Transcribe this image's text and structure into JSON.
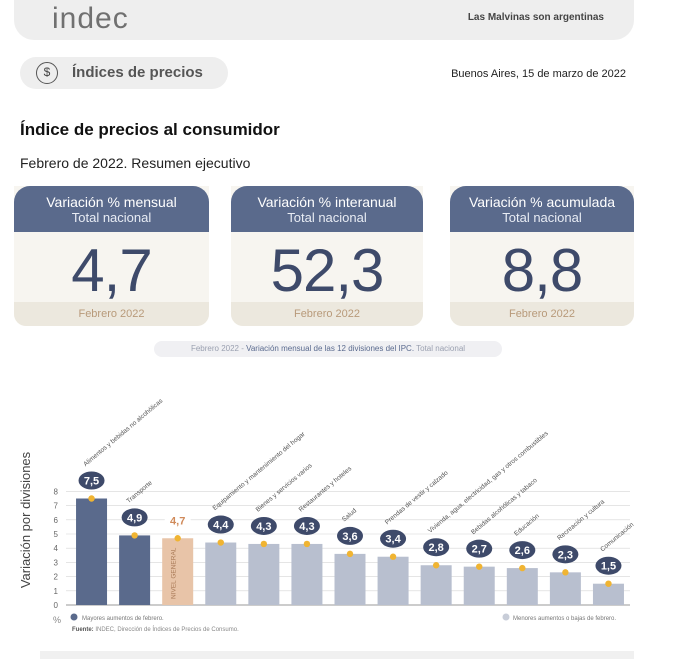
{
  "header": {
    "logo": "indec",
    "slogan": "Las Malvinas son argentinas"
  },
  "section": {
    "icon": "price-index-icon",
    "label": "Índices de precios",
    "date_line": "Buenos Aires, 15 de marzo de 2022"
  },
  "report": {
    "title": "Índice de precios al consumidor",
    "subtitle": "Febrero de 2022. Resumen ejecutivo"
  },
  "cards": [
    {
      "title": "Variación % mensual",
      "subtitle": "Total nacional",
      "value": "4,7",
      "footer": "Febrero 2022"
    },
    {
      "title": "Variación % interanual",
      "subtitle": "Total nacional",
      "value": "52,3",
      "footer": "Febrero 2022"
    },
    {
      "title": "Variación % acumulada",
      "subtitle": "Total nacional",
      "value": "8,8",
      "footer": "Febrero 2022"
    }
  ],
  "chart_banner": {
    "period": "Febrero 2022 - ",
    "description": "Variación mensual de las 12 divisiones del IPC.",
    "scope": " Total nacional"
  },
  "colors": {
    "navy": "#5a6a8c",
    "highlight": "#e8c4a8",
    "gray": "#b8bfcf",
    "marker": "#f0b432"
  },
  "chart_data": {
    "type": "bar",
    "ylabel": "Variación por divisiones",
    "yunit": "%",
    "ylim": [
      0,
      8
    ],
    "yticks": [
      "0",
      "1",
      "2",
      "3",
      "4",
      "5",
      "6",
      "7",
      "8"
    ],
    "grid": true,
    "categories": [
      "Alimentos y bebidas no alcohólicas",
      "Transporte",
      "NIVEL GENERAL",
      "Equipamiento y mantenimiento del hogar",
      "Bienes y servicios varios",
      "Restaurantes y hoteles",
      "Salud",
      "Prendas de vestir y calzado",
      "Vivienda, agua, electricidad, gas y otros combustibles",
      "Bebidas alcohólicas y tabaco",
      "Educación",
      "Recreación y cultura",
      "Comunicación"
    ],
    "values": [
      7.5,
      4.9,
      4.7,
      4.4,
      4.3,
      4.3,
      3.6,
      3.4,
      2.8,
      2.7,
      2.6,
      2.3,
      1.5
    ],
    "value_labels": [
      "7,5",
      "4,9",
      "4,7",
      "4,4",
      "4,3",
      "4,3",
      "3,6",
      "3,4",
      "2,8",
      "2,7",
      "2,6",
      "2,3",
      "1,5"
    ],
    "groups": [
      "high",
      "high",
      "general",
      "low",
      "low",
      "low",
      "low",
      "low",
      "low",
      "low",
      "low",
      "low",
      "low"
    ],
    "legend_high": "Mayores aumentos de febrero.",
    "legend_low": "Menores aumentos o bajas de febrero.",
    "source_label": "Fuente:",
    "source_text": " INDEC, Dirección de Índices de Precios de Consumo."
  }
}
